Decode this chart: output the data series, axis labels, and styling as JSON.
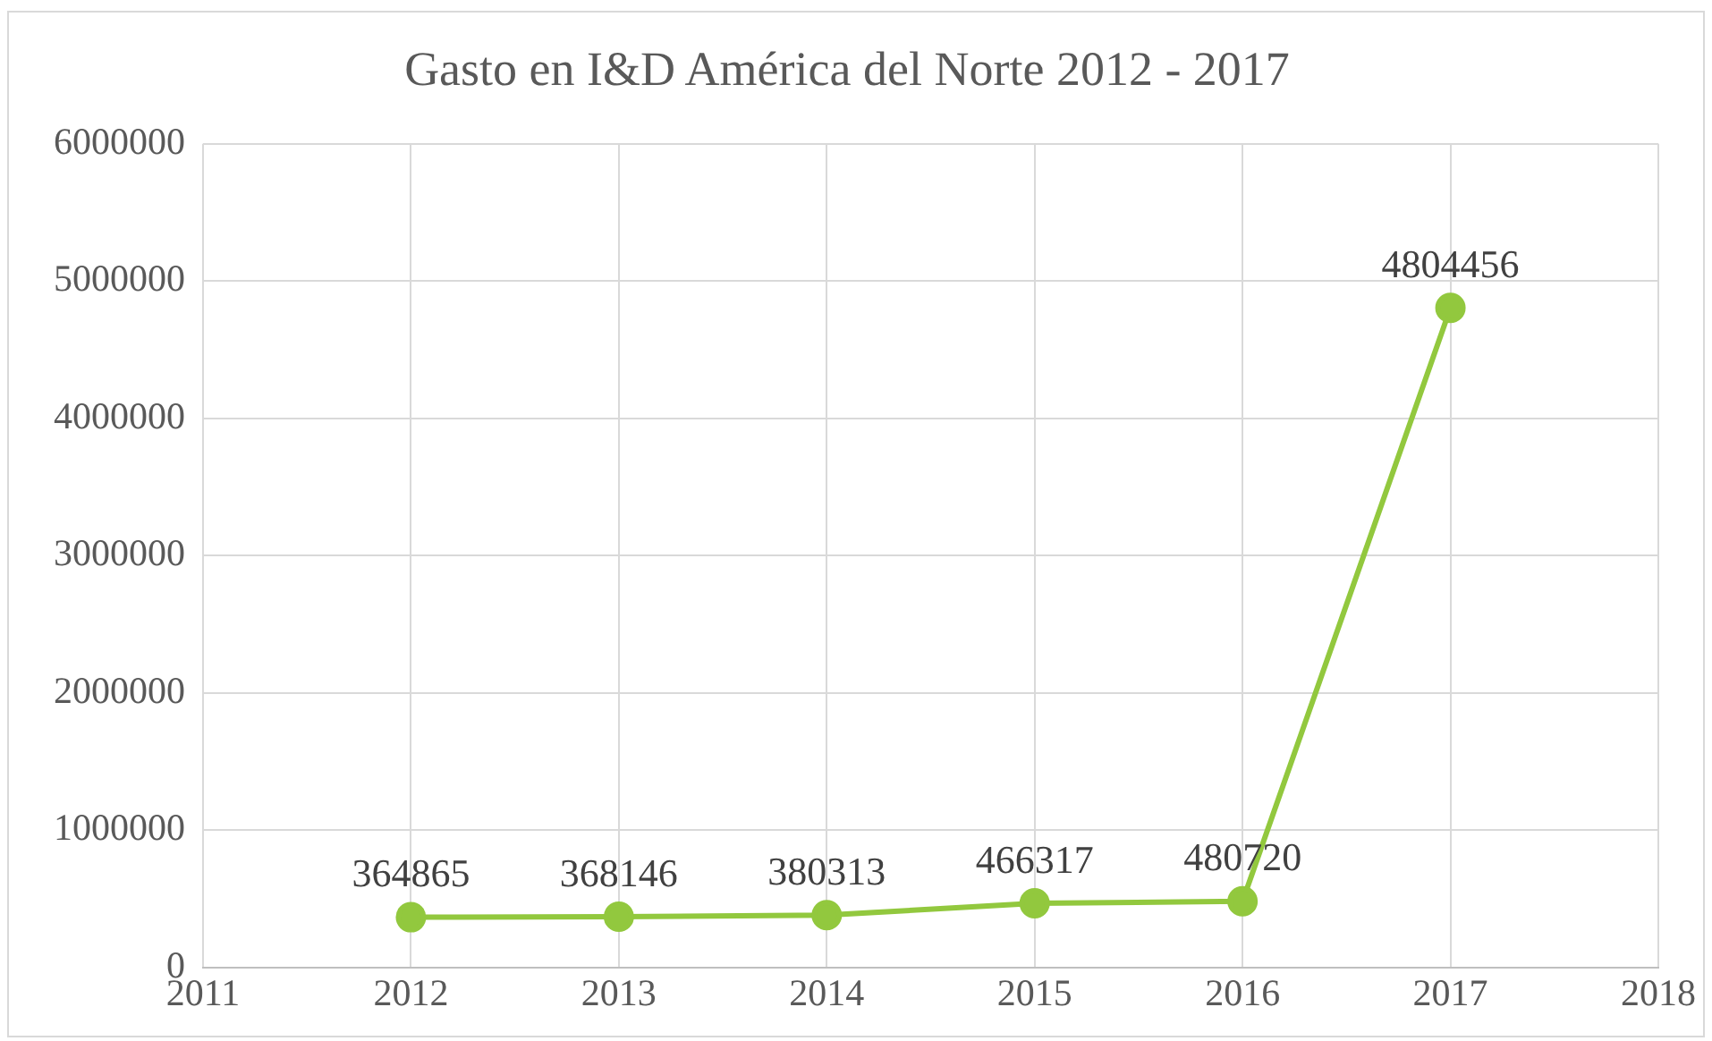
{
  "chart_data": {
    "type": "line",
    "title": "Gasto en I&D América del Norte 2012 - 2017",
    "x": [
      2012,
      2013,
      2014,
      2015,
      2016,
      2017
    ],
    "series": [
      {
        "color": "#92c83e",
        "values": [
          364865,
          368146,
          380313,
          466317,
          480720,
          4804456
        ]
      }
    ],
    "xlim": [
      2011,
      2018
    ],
    "xticks": [
      2011,
      2012,
      2013,
      2014,
      2015,
      2016,
      2017,
      2018
    ],
    "ylim": [
      0,
      6000000
    ],
    "yticks": [
      0,
      1000000,
      2000000,
      3000000,
      4000000,
      5000000,
      6000000
    ],
    "grid": true,
    "legend": false,
    "marker": "circle",
    "line_style": "solid",
    "data_labels": true
  }
}
